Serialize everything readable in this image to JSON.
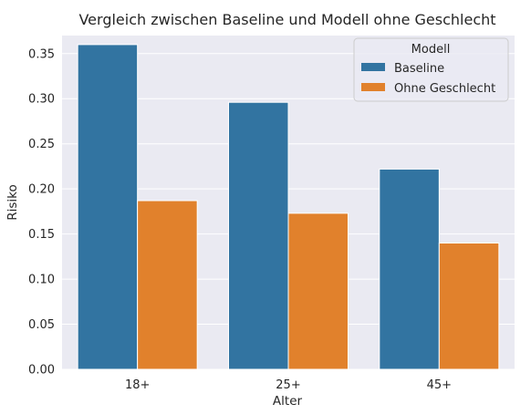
{
  "chart_data": {
    "type": "bar",
    "title": "Vergleich zwischen Baseline und Modell ohne Geschlecht",
    "xlabel": "Alter",
    "ylabel": "Risiko",
    "categories": [
      "18+",
      "25+",
      "45+"
    ],
    "series": [
      {
        "name": "Baseline",
        "values": [
          0.36,
          0.296,
          0.222
        ],
        "color": "#3274a1"
      },
      {
        "name": "Ohne Geschlecht",
        "values": [
          0.187,
          0.173,
          0.14
        ],
        "color": "#e1812c"
      }
    ],
    "ylim": [
      0,
      0.37
    ],
    "yticks": [
      "0.00",
      "0.05",
      "0.10",
      "0.15",
      "0.20",
      "0.25",
      "0.30",
      "0.35"
    ],
    "ytick_values": [
      0,
      0.05,
      0.1,
      0.15,
      0.2,
      0.25,
      0.3,
      0.35
    ],
    "grid": true,
    "legend": {
      "title": "Modell",
      "placement": "top-right"
    },
    "background_color": "#eaeaf2",
    "grid_color": "#ffffff"
  }
}
